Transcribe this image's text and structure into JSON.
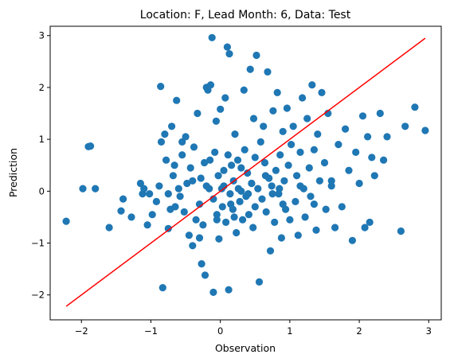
{
  "chart_data": {
    "type": "scatter",
    "title": "Location: F, Lead Month: 6, Data: Test",
    "xlabel": "Observation",
    "ylabel": "Prediction",
    "xlim": [
      -2.45,
      3.18
    ],
    "ylim": [
      -2.48,
      3.18
    ],
    "xticks": [
      -2,
      -1,
      0,
      1,
      2,
      3
    ],
    "yticks": [
      -2,
      -1,
      0,
      1,
      2,
      3
    ],
    "grid": false,
    "colors": {
      "points": "#1f77b4",
      "fit_line": "#ff0000"
    },
    "fit_line": {
      "x": [
        -2.22,
        2.95
      ],
      "y": [
        -2.22,
        2.95
      ]
    },
    "series": [
      {
        "points": [
          [
            -2.22,
            -0.58
          ],
          [
            -1.98,
            0.05
          ],
          [
            -1.9,
            0.86
          ],
          [
            -1.87,
            0.87
          ],
          [
            -1.8,
            0.05
          ],
          [
            -1.6,
            -0.7
          ],
          [
            -1.43,
            -0.38
          ],
          [
            -1.4,
            -0.15
          ],
          [
            -1.28,
            -0.5
          ],
          [
            -1.15,
            0.15
          ],
          [
            -1.12,
            -0.05
          ],
          [
            -1.1,
            0.05
          ],
          [
            -1.05,
            -0.65
          ],
          [
            -1.02,
            -0.05
          ],
          [
            -0.98,
            -0.45
          ],
          [
            -0.92,
            -0.2
          ],
          [
            -0.88,
            0.1
          ],
          [
            -0.86,
            2.02
          ],
          [
            -0.85,
            0.95
          ],
          [
            -0.83,
            -1.86
          ],
          [
            -0.8,
            1.1
          ],
          [
            -0.78,
            0.6
          ],
          [
            -0.75,
            -0.72
          ],
          [
            -0.72,
            -0.35
          ],
          [
            -0.7,
            1.25
          ],
          [
            -0.68,
            0.3
          ],
          [
            -0.66,
            0.5
          ],
          [
            -0.63,
            1.75
          ],
          [
            -0.6,
            0.05
          ],
          [
            -0.58,
            -0.1
          ],
          [
            -0.55,
            0.7
          ],
          [
            -0.52,
            -0.4
          ],
          [
            -0.5,
            1.05
          ],
          [
            -0.48,
            0.15
          ],
          [
            -0.45,
            -0.85
          ],
          [
            -0.43,
            0.45
          ],
          [
            -0.4,
            -1.05
          ],
          [
            -0.38,
            0.85
          ],
          [
            -0.35,
            -0.55
          ],
          [
            -0.33,
            1.5
          ],
          [
            -0.3,
            -0.25
          ],
          [
            -0.28,
            0.25
          ],
          [
            -0.27,
            -1.4
          ],
          [
            -0.25,
            -0.65
          ],
          [
            -0.23,
            0.55
          ],
          [
            -0.22,
            -1.62
          ],
          [
            -0.2,
            2.0
          ],
          [
            -0.18,
            1.95
          ],
          [
            -0.16,
            0.05
          ],
          [
            -0.14,
            2.05
          ],
          [
            -0.12,
            2.96
          ],
          [
            -0.1,
            -0.15
          ],
          [
            -0.08,
            0.75
          ],
          [
            -0.06,
            1.35
          ],
          [
            -0.05,
            -0.45
          ],
          [
            -0.03,
            0.3
          ],
          [
            -0.02,
            -0.92
          ],
          [
            0.0,
            1.58
          ],
          [
            0.02,
            0.05
          ],
          [
            0.03,
            -0.3
          ],
          [
            0.05,
            0.1
          ],
          [
            0.07,
            1.8
          ],
          [
            0.08,
            -0.6
          ],
          [
            0.1,
            2.78
          ],
          [
            0.11,
            0.7
          ],
          [
            0.13,
            2.65
          ],
          [
            0.14,
            -0.05
          ],
          [
            0.16,
            0.5
          ],
          [
            0.18,
            -0.35
          ],
          [
            0.19,
            0.2
          ],
          [
            0.21,
            1.1
          ],
          [
            0.23,
            -0.8
          ],
          [
            0.25,
            0.6
          ],
          [
            0.26,
            0.05
          ],
          [
            0.28,
            -0.2
          ],
          [
            0.3,
            0.45
          ],
          [
            0.32,
            -0.55
          ],
          [
            0.34,
            1.95
          ],
          [
            0.35,
            0.8
          ],
          [
            0.37,
            -0.1
          ],
          [
            0.39,
            0.35
          ],
          [
            0.41,
            -0.45
          ],
          [
            0.43,
            2.35
          ],
          [
            0.45,
            0.15
          ],
          [
            0.47,
            -0.7
          ],
          [
            0.48,
            1.4
          ],
          [
            0.5,
            -0.3
          ],
          [
            0.52,
            2.62
          ],
          [
            0.54,
            0.05
          ],
          [
            0.56,
            -1.75
          ],
          [
            0.58,
            0.95
          ],
          [
            0.6,
            -0.15
          ],
          [
            0.62,
            1.25
          ],
          [
            0.64,
            0.55
          ],
          [
            0.66,
            -0.4
          ],
          [
            0.68,
            2.3
          ],
          [
            0.7,
            0.25
          ],
          [
            0.72,
            -1.15
          ],
          [
            0.74,
            0.1
          ],
          [
            0.76,
            1.55
          ],
          [
            0.78,
            -0.6
          ],
          [
            0.8,
            0.4
          ],
          [
            0.82,
            1.9
          ],
          [
            0.84,
            -0.05
          ],
          [
            0.86,
            0.7
          ],
          [
            0.88,
            -0.9
          ],
          [
            0.9,
            1.15
          ],
          [
            0.92,
            0.2
          ],
          [
            0.94,
            -0.35
          ],
          [
            0.96,
            1.6
          ],
          [
            0.98,
            0.5
          ],
          [
            1.0,
            -0.55
          ],
          [
            1.02,
            0.9
          ],
          [
            1.05,
            1.25
          ],
          [
            1.08,
            -0.2
          ],
          [
            1.1,
            0.3
          ],
          [
            1.12,
            -0.85
          ],
          [
            1.15,
            0.75
          ],
          [
            1.18,
            1.8
          ],
          [
            1.2,
            0.05
          ],
          [
            1.22,
            -0.5
          ],
          [
            1.25,
            1.4
          ],
          [
            1.28,
            0.45
          ],
          [
            1.3,
            -0.1
          ],
          [
            1.32,
            2.05
          ],
          [
            1.35,
            0.8
          ],
          [
            1.38,
            -0.75
          ],
          [
            1.4,
            1.1
          ],
          [
            1.43,
            0.2
          ],
          [
            1.46,
            1.9
          ],
          [
            1.5,
            0.55
          ],
          [
            1.52,
            -0.35
          ],
          [
            1.55,
            1.5
          ],
          [
            1.6,
            0.1
          ],
          [
            1.65,
            -0.7
          ],
          [
            1.7,
            0.9
          ],
          [
            1.75,
            -0.3
          ],
          [
            1.8,
            1.2
          ],
          [
            1.85,
            0.4
          ],
          [
            1.9,
            -0.95
          ],
          [
            1.95,
            0.75
          ],
          [
            2.0,
            0.15
          ],
          [
            2.05,
            1.45
          ],
          [
            2.08,
            -0.7
          ],
          [
            2.12,
            1.05
          ],
          [
            2.15,
            -0.6
          ],
          [
            2.18,
            0.65
          ],
          [
            2.22,
            0.3
          ],
          [
            2.3,
            1.5
          ],
          [
            2.35,
            0.6
          ],
          [
            2.4,
            1.05
          ],
          [
            2.6,
            -0.77
          ],
          [
            2.66,
            1.25
          ],
          [
            2.8,
            1.62
          ],
          [
            2.95,
            1.17
          ],
          [
            -0.65,
            -0.3
          ],
          [
            -0.4,
            0.2
          ],
          [
            -0.15,
            0.6
          ],
          [
            0.15,
            -0.25
          ],
          [
            0.4,
            -0.05
          ],
          [
            0.65,
            0.3
          ],
          [
            0.9,
            -0.25
          ],
          [
            1.15,
            0.1
          ],
          [
            -0.3,
            -0.9
          ],
          [
            -0.1,
            -1.95
          ],
          [
            0.12,
            -1.9
          ],
          [
            -0.05,
            -0.55
          ],
          [
            0.2,
            -0.5
          ],
          [
            0.5,
            0.65
          ],
          [
            -0.55,
            0.95
          ],
          [
            0.3,
            0.0
          ],
          [
            0.45,
            0.15
          ],
          [
            0.75,
            -0.05
          ],
          [
            -0.75,
            -0.05
          ],
          [
            -0.2,
            0.1
          ],
          [
            0.05,
            0.4
          ],
          [
            0.85,
            0.05
          ],
          [
            1.35,
            -0.25
          ],
          [
            1.6,
            0.2
          ]
        ]
      }
    ]
  }
}
